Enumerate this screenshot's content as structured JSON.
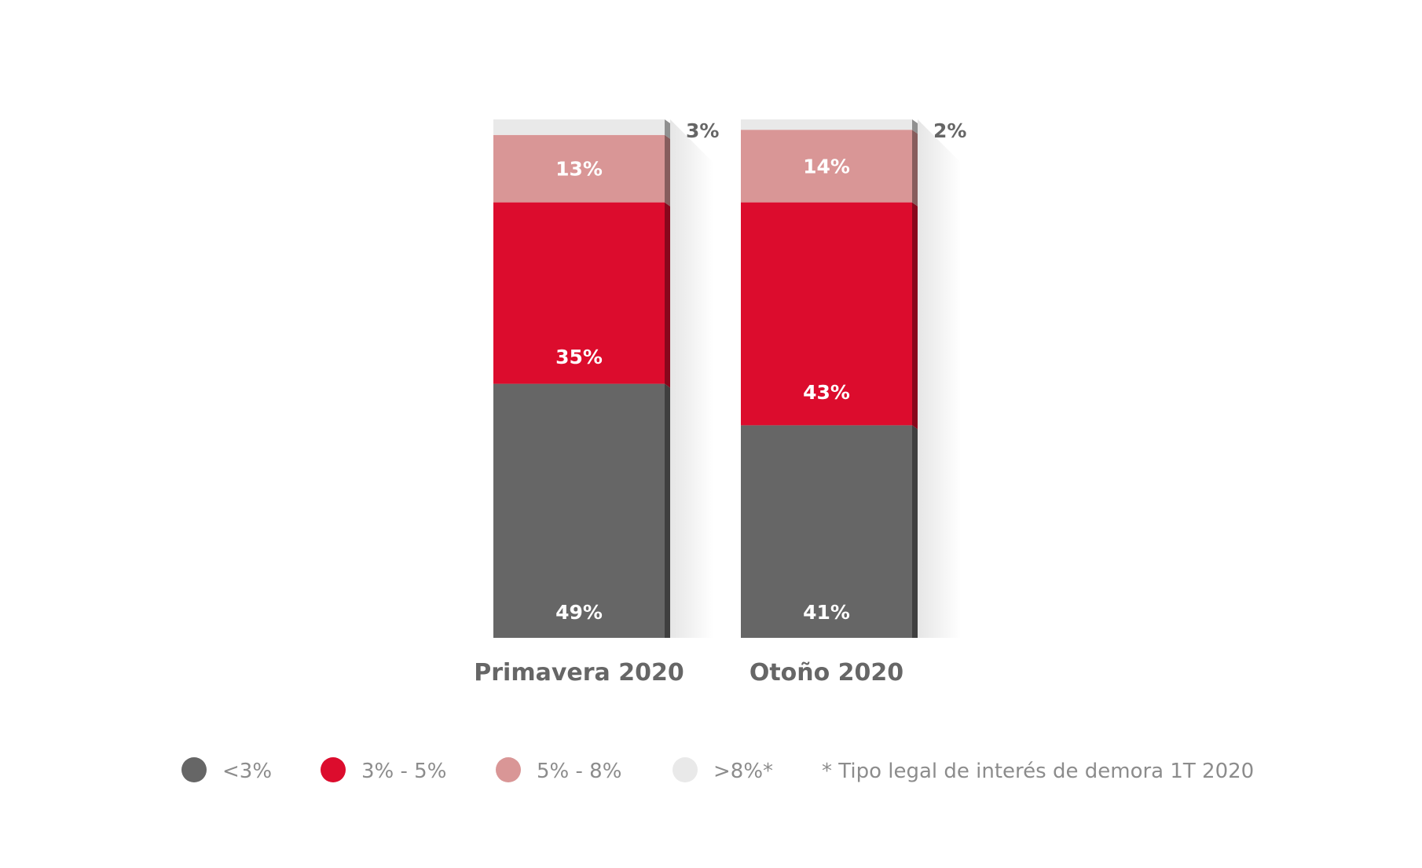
{
  "chart_data": {
    "type": "bar",
    "stacked": true,
    "categories": [
      "Primavera 2020",
      "Otoño 2020"
    ],
    "series": [
      {
        "name": "<3%",
        "values": [
          49,
          41
        ],
        "labels": [
          "49%",
          "41%"
        ],
        "color": "#666666"
      },
      {
        "name": "3% - 5%",
        "values": [
          35,
          43
        ],
        "labels": [
          "35%",
          "43%"
        ],
        "color": "#dc0c2d"
      },
      {
        "name": "5% - 8%",
        "values": [
          13,
          14
        ],
        "labels": [
          "13%",
          "14%"
        ],
        "color": "#d99696"
      },
      {
        "name": ">8%*",
        "values": [
          3,
          2
        ],
        "labels": [
          "3%",
          "2%"
        ],
        "color": "#e9e9e9"
      }
    ],
    "ylim": [
      0,
      100
    ],
    "legend": "bottom",
    "grid": false,
    "footnote": "* Tipo legal de interés de demora 1T 2020"
  }
}
